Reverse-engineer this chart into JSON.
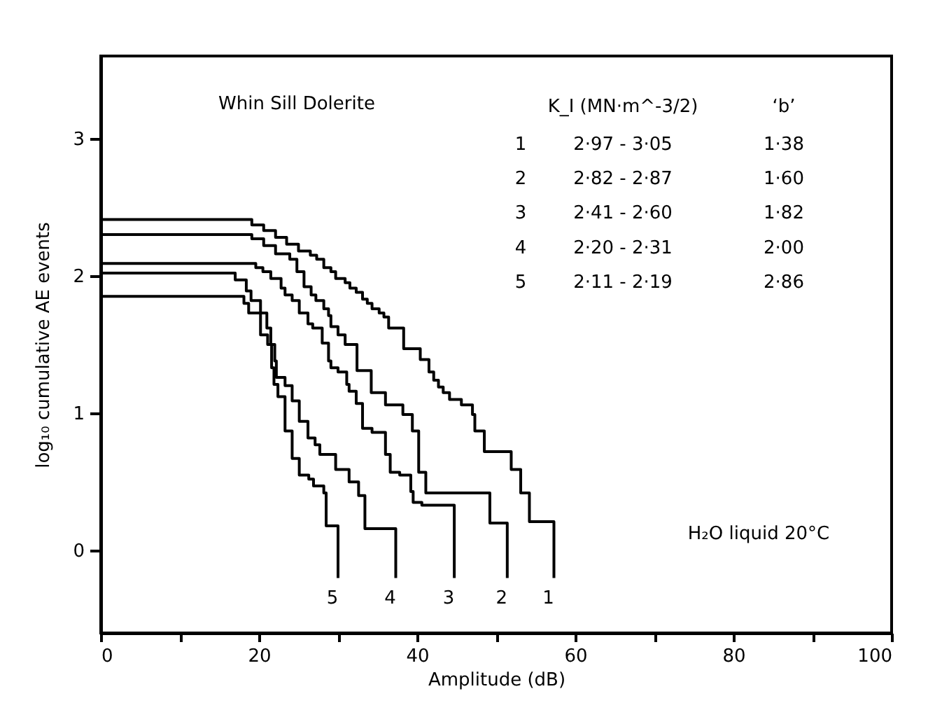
{
  "chart_data": {
    "type": "step",
    "xlabel": "Amplitude (dB)",
    "ylabel": "log₁₀ cumulative AE events",
    "xlim": [
      0,
      100
    ],
    "xticks": [
      0,
      {
        "value": 10,
        "label": null
      },
      20,
      {
        "value": 30,
        "label": null
      },
      40,
      {
        "value": 50,
        "label": null
      },
      60,
      {
        "value": 70,
        "label": null
      },
      80,
      {
        "value": 90,
        "label": null
      },
      100
    ],
    "ylim": [
      -0.6,
      3.6
    ],
    "yticks": [
      0,
      1,
      2,
      3
    ],
    "grid": false,
    "line_style": "solid",
    "marker": "none",
    "series": [
      {
        "name": "1",
        "color": "#000000",
        "x": [
          0,
          19.1,
          20.6,
          22.1,
          23.5,
          25.0,
          26.5,
          27.3,
          28.2,
          29.1,
          29.7,
          30.9,
          31.5,
          32.3,
          33.1,
          33.7,
          34.3,
          35.2,
          35.8,
          36.4,
          38.3,
          40.4,
          41.5,
          42.1,
          42.7,
          43.3,
          44.1,
          45.6,
          47.0,
          47.3,
          48.5,
          51.9,
          53.1,
          54.2,
          57.3
        ],
        "values": [
          2.41,
          2.37,
          2.33,
          2.28,
          2.23,
          2.18,
          2.15,
          2.12,
          2.06,
          2.03,
          1.98,
          1.95,
          1.91,
          1.88,
          1.83,
          1.8,
          1.76,
          1.73,
          1.7,
          1.62,
          1.47,
          1.39,
          1.3,
          1.24,
          1.19,
          1.15,
          1.1,
          1.06,
          0.99,
          0.87,
          0.72,
          0.59,
          0.42,
          0.21,
          -0.2
        ]
      },
      {
        "name": "2",
        "color": "#000000",
        "x": [
          0,
          19.1,
          20.6,
          22.1,
          23.9,
          24.8,
          25.7,
          26.6,
          27.2,
          28.2,
          28.8,
          29.1,
          30.0,
          30.9,
          32.4,
          34.2,
          36.0,
          38.2,
          39.4,
          40.2,
          41.1,
          49.2,
          51.4
        ],
        "values": [
          2.3,
          2.27,
          2.22,
          2.16,
          2.12,
          2.03,
          1.92,
          1.86,
          1.82,
          1.76,
          1.71,
          1.63,
          1.57,
          1.5,
          1.31,
          1.15,
          1.06,
          0.99,
          0.87,
          0.57,
          0.42,
          0.2,
          -0.2
        ]
      },
      {
        "name": "3",
        "color": "#000000",
        "x": [
          0,
          19.6,
          20.5,
          21.5,
          22.8,
          23.3,
          24.2,
          25.1,
          26.2,
          26.8,
          28.0,
          28.8,
          29.1,
          30.0,
          31.1,
          31.4,
          32.3,
          33.1,
          34.3,
          36.0,
          36.6,
          37.8,
          39.2,
          39.5,
          40.6,
          44.7
        ],
        "values": [
          2.09,
          2.06,
          2.03,
          1.98,
          1.91,
          1.86,
          1.82,
          1.73,
          1.65,
          1.62,
          1.51,
          1.38,
          1.33,
          1.3,
          1.21,
          1.16,
          1.07,
          0.89,
          0.86,
          0.7,
          0.57,
          0.55,
          0.43,
          0.35,
          0.33,
          -0.2
        ]
      },
      {
        "name": "4",
        "color": "#000000",
        "x": [
          0,
          17.0,
          18.4,
          19.0,
          20.2,
          21.0,
          21.5,
          22.0,
          22.2,
          23.3,
          24.2,
          25.1,
          26.2,
          27.1,
          27.7,
          29.7,
          31.4,
          32.6,
          33.4,
          37.3
        ],
        "values": [
          2.02,
          1.97,
          1.89,
          1.82,
          1.73,
          1.62,
          1.5,
          1.38,
          1.26,
          1.2,
          1.09,
          0.94,
          0.82,
          0.77,
          0.7,
          0.59,
          0.5,
          0.4,
          0.16,
          -0.2
        ]
      },
      {
        "name": "5",
        "color": "#000000",
        "x": [
          0,
          18.1,
          18.7,
          20.2,
          21.1,
          21.6,
          21.9,
          22.4,
          23.3,
          24.2,
          25.1,
          26.3,
          26.9,
          28.2,
          28.5,
          30.0
        ],
        "values": [
          1.85,
          1.8,
          1.73,
          1.57,
          1.5,
          1.33,
          1.21,
          1.12,
          0.87,
          0.67,
          0.55,
          0.52,
          0.47,
          0.42,
          0.18,
          -0.2
        ]
      }
    ],
    "annotations": [
      "Whin Sill Dolerite",
      "K_I (MN·m^-3/2)",
      "‘b’",
      "1",
      "2·97 - 3·05",
      "1·38",
      "2",
      "2·82 - 2·87",
      "1·60",
      "3",
      "2·41 - 2·60",
      "1·82",
      "4",
      "2·20 - 2·31",
      "2·00",
      "5",
      "2·11 - 2·19",
      "2·86",
      "H₂O liquid 20°C"
    ]
  }
}
